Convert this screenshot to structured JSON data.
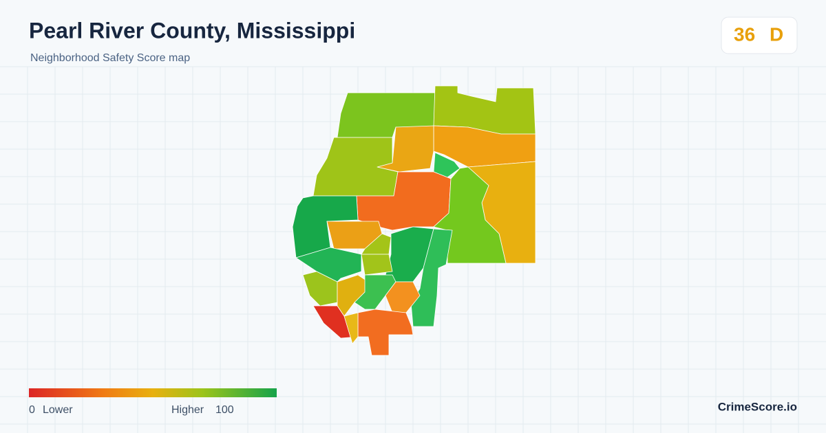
{
  "header": {
    "title": "Pearl River County, Mississippi",
    "subtitle": "Neighborhood Safety Score map"
  },
  "score": {
    "value": 36,
    "grade": "D"
  },
  "legend": {
    "min": 0,
    "min_label": "Lower",
    "max_label": "Higher",
    "max": 100
  },
  "brand": "CrimeScore.io"
}
